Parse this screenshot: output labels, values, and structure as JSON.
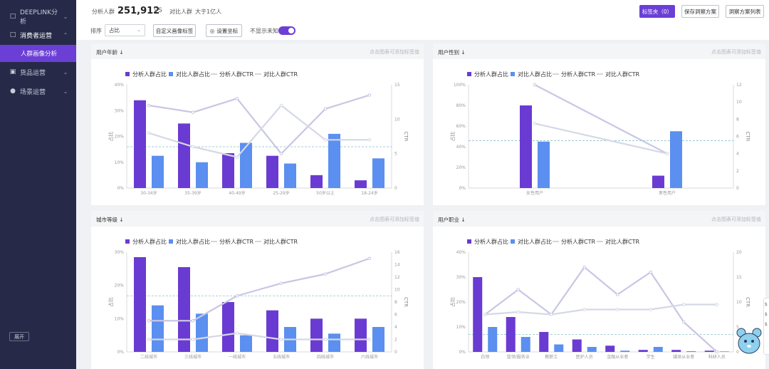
{
  "sidebar": {
    "items": [
      {
        "label": "DEEPLINK分析",
        "icon": "bag-icon"
      },
      {
        "label": "消费者运营",
        "icon": "bag-icon",
        "open": true
      },
      {
        "label": "货品运营",
        "icon": "box-icon"
      },
      {
        "label": "场景运营",
        "icon": "users-icon"
      }
    ],
    "subitem": "人群画像分析",
    "collapse_label": "展开"
  },
  "topbar": {
    "analysis_label": "分析人群",
    "analysis_value": "251,912",
    "vs": "VS",
    "compare_label": "对比人群",
    "compare_value": "大于1亿人",
    "tag_button": "标签夹（0）",
    "save_button": "保存洞察方案",
    "list_button": "洞察方案列表"
  },
  "toolbar": {
    "sort_label": "排序",
    "sort_value": "占比",
    "custom_button": "自定义画像标签",
    "axis_button": "设置坐标",
    "unknown_label": "不显示未知"
  },
  "legend": {
    "a_share": "分析人群占比",
    "b_share": "对比人群占比",
    "a_ctr": "分析人群CTR",
    "b_ctr": "对比人群CTR"
  },
  "colors": {
    "a_bar": "#6a3bd2",
    "b_bar": "#5b8ff0",
    "a_line": "#c9c6e4",
    "b_line": "#d5d8e6",
    "ref_line": "#8fc0c6"
  },
  "hint": "点击图表可添加标签值",
  "chart_data": [
    {
      "type": "bar",
      "title": "用户年龄",
      "categories": [
        "30-34岁",
        "35-39岁",
        "40-49岁",
        "25-29岁",
        "50岁以上",
        "18-24岁"
      ],
      "series": [
        {
          "name": "分析人群占比",
          "values": [
            34,
            25,
            13.5,
            12.5,
            5,
            3
          ]
        },
        {
          "name": "对比人群占比",
          "values": [
            12.5,
            10,
            17.5,
            9.5,
            21,
            11.5
          ]
        },
        {
          "name": "分析人群CTR",
          "axis": "right",
          "values": [
            12,
            11,
            13,
            5,
            11.5,
            13.5
          ]
        },
        {
          "name": "对比人群CTR",
          "axis": "right",
          "values": [
            8,
            6,
            4.5,
            12,
            7,
            7
          ]
        }
      ],
      "ylabel": "占比",
      "y2label": "CTR",
      "ylim": [
        0,
        40
      ],
      "yticks": [
        "0%",
        "10%",
        "20%",
        "30%",
        "40%"
      ],
      "y2lim": [
        0,
        15
      ],
      "y2ticks": [
        "0",
        "5",
        "10",
        "15"
      ],
      "reference": 6
    },
    {
      "type": "bar",
      "title": "用户性别",
      "categories": [
        "女性用户",
        "男性用户"
      ],
      "series": [
        {
          "name": "分析人群占比",
          "values": [
            80,
            12
          ]
        },
        {
          "name": "对比人群占比",
          "values": [
            45,
            55
          ]
        },
        {
          "name": "分析人群CTR",
          "axis": "right",
          "values": [
            12,
            4
          ]
        },
        {
          "name": "对比人群CTR",
          "axis": "right",
          "values": [
            7.5,
            4
          ]
        }
      ],
      "ylabel": "占比",
      "y2label": "CTR",
      "ylim": [
        0,
        100
      ],
      "yticks": [
        "0%",
        "20%",
        "40%",
        "60%",
        "80%",
        "100%"
      ],
      "y2lim": [
        0,
        12
      ],
      "y2ticks": [
        "0",
        "2",
        "4",
        "6",
        "8",
        "10",
        "12"
      ],
      "reference": 5.5
    },
    {
      "type": "bar",
      "title": "城市等级",
      "categories": [
        "二线城市",
        "三线城市",
        "一线城市",
        "五线城市",
        "四线城市",
        "六线城市"
      ],
      "series": [
        {
          "name": "分析人群占比",
          "values": [
            28.5,
            25.5,
            15,
            12.5,
            10,
            10
          ]
        },
        {
          "name": "对比人群占比",
          "values": [
            14,
            11.5,
            5,
            7.5,
            5.5,
            7.5
          ]
        },
        {
          "name": "分析人群CTR",
          "axis": "right",
          "values": [
            5,
            5,
            9,
            11,
            12.5,
            15
          ]
        },
        {
          "name": "对比人群CTR",
          "axis": "right",
          "values": [
            2,
            2,
            3,
            2,
            2,
            2
          ]
        }
      ],
      "ylabel": "占比",
      "y2label": "CTR",
      "ylim": [
        0,
        30
      ],
      "yticks": [
        "0%",
        "10%",
        "20%",
        "30%"
      ],
      "y2lim": [
        0,
        16
      ],
      "y2ticks": [
        "0",
        "2",
        "4",
        "6",
        "8",
        "10",
        "12",
        "14",
        "16"
      ],
      "reference": 9
    },
    {
      "type": "bar",
      "title": "用户职业",
      "categories": [
        "白领",
        "蓝领/服务业",
        "教职工",
        "医护人员",
        "金融从业者",
        "学生",
        "媒体从业者",
        "科研人员"
      ],
      "series": [
        {
          "name": "分析人群占比",
          "values": [
            30,
            14,
            8,
            5,
            2.5,
            0.8,
            0.8,
            0.5
          ]
        },
        {
          "name": "对比人群占比",
          "values": [
            10,
            6,
            3,
            2,
            0.5,
            2,
            0.3,
            0.2
          ]
        },
        {
          "name": "分析人群CTR",
          "axis": "right",
          "values": [
            7.5,
            12.5,
            7.5,
            17,
            11.5,
            16,
            6,
            0
          ]
        },
        {
          "name": "对比人群CTR",
          "axis": "right",
          "values": [
            7.5,
            8,
            7.5,
            8.5,
            8.5,
            8.5,
            9.5,
            9.5
          ]
        }
      ],
      "ylabel": "占比",
      "y2label": "CTR",
      "ylim": [
        0,
        40
      ],
      "yticks": [
        "0%",
        "10%",
        "20%",
        "30%",
        "40%"
      ],
      "y2lim": [
        0,
        20
      ],
      "y2ticks": [
        "0",
        "5",
        "10",
        "15",
        "20"
      ],
      "reference": 3.5
    }
  ],
  "edge": {
    "items": [
      "$",
      "$",
      "$"
    ]
  }
}
